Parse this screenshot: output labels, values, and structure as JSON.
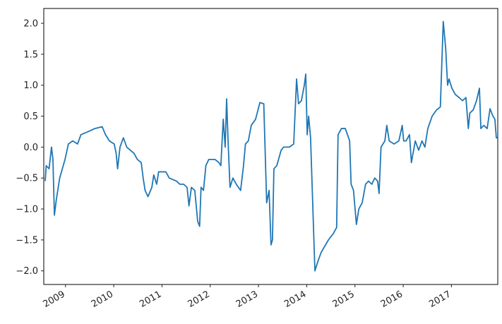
{
  "chart_data": {
    "type": "line",
    "color": "#1f77b4",
    "x": [
      2008.58,
      2008.6,
      2008.66,
      2008.71,
      2008.74,
      2008.77,
      2008.81,
      2008.88,
      2008.99,
      2009.06,
      2009.15,
      2009.25,
      2009.32,
      2009.47,
      2009.61,
      2009.76,
      2009.83,
      2009.91,
      2010.01,
      2010.05,
      2010.08,
      2010.13,
      2010.2,
      2010.27,
      2010.42,
      2010.49,
      2010.57,
      2010.61,
      2010.65,
      2010.71,
      2010.79,
      2010.83,
      2010.89,
      2010.93,
      2011.08,
      2011.15,
      2011.3,
      2011.37,
      2011.45,
      2011.52,
      2011.56,
      2011.61,
      2011.68,
      2011.74,
      2011.78,
      2011.81,
      2011.86,
      2011.91,
      2011.97,
      2012.1,
      2012.18,
      2012.22,
      2012.27,
      2012.31,
      2012.34,
      2012.37,
      2012.41,
      2012.47,
      2012.54,
      2012.63,
      2012.69,
      2012.73,
      2012.79,
      2012.85,
      2012.94,
      2013.03,
      2013.11,
      2013.17,
      2013.22,
      2013.26,
      2013.29,
      2013.32,
      2013.38,
      2013.47,
      2013.52,
      2013.64,
      2013.73,
      2013.79,
      2013.83,
      2013.89,
      2013.95,
      2013.98,
      2014.01,
      2014.04,
      2014.08,
      2014.17,
      2014.23,
      2014.3,
      2014.45,
      2014.55,
      2014.62,
      2014.65,
      2014.72,
      2014.8,
      2014.89,
      2014.92,
      2014.97,
      2015.03,
      2015.08,
      2015.15,
      2015.22,
      2015.28,
      2015.35,
      2015.41,
      2015.47,
      2015.5,
      2015.54,
      2015.62,
      2015.66,
      2015.71,
      2015.81,
      2015.91,
      2015.98,
      2016.01,
      2016.06,
      2016.13,
      2016.17,
      2016.25,
      2016.32,
      2016.39,
      2016.45,
      2016.51,
      2016.6,
      2016.69,
      2016.77,
      2016.83,
      2016.88,
      2016.92,
      2016.95,
      2017.01,
      2017.08,
      2017.16,
      2017.23,
      2017.3,
      2017.35,
      2017.38,
      2017.45,
      2017.52,
      2017.58,
      2017.61,
      2017.67,
      2017.74,
      2017.8,
      2017.86,
      2017.9,
      2017.93,
      2017.95
    ],
    "values": [
      -0.55,
      -0.3,
      -0.35,
      0.0,
      -0.2,
      -1.1,
      -0.85,
      -0.5,
      -0.2,
      0.05,
      0.1,
      0.05,
      0.2,
      0.25,
      0.3,
      0.33,
      0.2,
      0.1,
      0.05,
      -0.1,
      -0.35,
      0.0,
      0.15,
      0.0,
      -0.1,
      -0.2,
      -0.25,
      -0.5,
      -0.7,
      -0.8,
      -0.65,
      -0.45,
      -0.6,
      -0.4,
      -0.4,
      -0.5,
      -0.55,
      -0.6,
      -0.6,
      -0.65,
      -0.95,
      -0.65,
      -0.7,
      -1.2,
      -1.28,
      -0.65,
      -0.7,
      -0.3,
      -0.2,
      -0.2,
      -0.25,
      -0.3,
      0.45,
      0.0,
      0.78,
      0.1,
      -0.65,
      -0.5,
      -0.6,
      -0.7,
      -0.3,
      0.05,
      0.1,
      0.35,
      0.45,
      0.72,
      0.7,
      -0.9,
      -0.7,
      -1.58,
      -1.5,
      -0.35,
      -0.3,
      -0.05,
      0.0,
      0.0,
      0.05,
      1.1,
      0.7,
      0.75,
      1.0,
      1.18,
      0.2,
      0.5,
      0.15,
      -2.0,
      -1.85,
      -1.7,
      -1.5,
      -1.4,
      -1.3,
      0.2,
      0.3,
      0.3,
      0.1,
      -0.6,
      -0.7,
      -1.25,
      -1.0,
      -0.9,
      -0.6,
      -0.55,
      -0.6,
      -0.5,
      -0.55,
      -0.75,
      0.0,
      0.1,
      0.35,
      0.1,
      0.05,
      0.1,
      0.35,
      0.1,
      0.1,
      0.2,
      -0.25,
      0.1,
      -0.05,
      0.1,
      0.0,
      0.3,
      0.5,
      0.6,
      0.65,
      2.03,
      1.6,
      1.0,
      1.1,
      0.95,
      0.85,
      0.8,
      0.75,
      0.8,
      0.3,
      0.55,
      0.6,
      0.75,
      0.95,
      0.3,
      0.35,
      0.3,
      0.62,
      0.5,
      0.45,
      0.15,
      0.15
    ],
    "xlim": [
      2008.55,
      2017.96
    ],
    "xticks": [
      2009,
      2010,
      2011,
      2012,
      2013,
      2014,
      2015,
      2016,
      2017
    ],
    "ylim": [
      -2.22,
      2.24
    ],
    "yticks": [
      {
        "value": -2.0,
        "label": "−2.0"
      },
      {
        "value": -1.5,
        "label": "−1.5"
      },
      {
        "value": -1.0,
        "label": "−1.0"
      },
      {
        "value": -0.5,
        "label": "−0.5"
      },
      {
        "value": 0.0,
        "label": "0.0"
      },
      {
        "value": 0.5,
        "label": "0.5"
      },
      {
        "value": 1.0,
        "label": "1.0"
      },
      {
        "value": 1.5,
        "label": "1.5"
      },
      {
        "value": 2.0,
        "label": "2.0"
      }
    ]
  }
}
